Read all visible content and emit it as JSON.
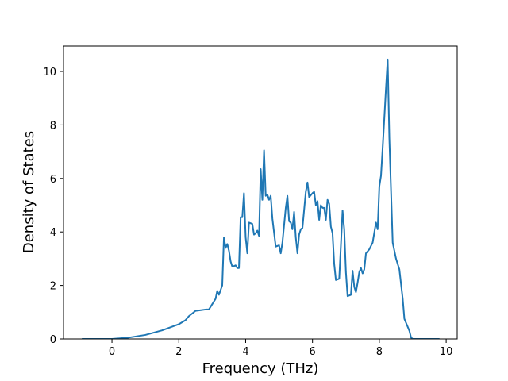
{
  "chart_data": {
    "type": "line",
    "xlabel": "Frequency (THz)",
    "ylabel": "Density of States",
    "x": [
      -0.9,
      0,
      0.5,
      1.0,
      1.5,
      2.0,
      2.2,
      2.3,
      2.5,
      2.8,
      2.9,
      3.0,
      3.1,
      3.15,
      3.2,
      3.3,
      3.35,
      3.4,
      3.45,
      3.5,
      3.55,
      3.6,
      3.7,
      3.75,
      3.8,
      3.85,
      3.9,
      3.95,
      4.0,
      4.05,
      4.1,
      4.2,
      4.25,
      4.3,
      4.35,
      4.4,
      4.45,
      4.5,
      4.55,
      4.6,
      4.65,
      4.7,
      4.75,
      4.8,
      4.9,
      5.0,
      5.05,
      5.1,
      5.2,
      5.25,
      5.3,
      5.35,
      5.4,
      5.45,
      5.5,
      5.55,
      5.6,
      5.65,
      5.7,
      5.8,
      5.85,
      5.9,
      6.0,
      6.05,
      6.1,
      6.15,
      6.2,
      6.25,
      6.3,
      6.35,
      6.4,
      6.45,
      6.5,
      6.55,
      6.6,
      6.65,
      6.7,
      6.8,
      6.85,
      6.9,
      6.95,
      7.0,
      7.05,
      7.15,
      7.2,
      7.25,
      7.3,
      7.35,
      7.4,
      7.45,
      7.5,
      7.55,
      7.6,
      7.7,
      7.8,
      7.9,
      7.95,
      8.0,
      8.05,
      8.1,
      8.2,
      8.25,
      8.3,
      8.4,
      8.5,
      8.6,
      8.7,
      8.75,
      8.8,
      8.9,
      8.95,
      9.0,
      9.8
    ],
    "y": [
      0,
      0,
      0.05,
      0.15,
      0.32,
      0.55,
      0.7,
      0.85,
      1.05,
      1.1,
      1.1,
      1.3,
      1.5,
      1.8,
      1.65,
      2.0,
      3.8,
      3.4,
      3.55,
      3.3,
      2.9,
      2.7,
      2.75,
      2.65,
      2.65,
      4.55,
      4.55,
      5.45,
      3.8,
      3.2,
      4.35,
      4.3,
      3.9,
      3.95,
      4.05,
      3.85,
      6.35,
      5.2,
      7.05,
      5.35,
      5.4,
      5.2,
      5.35,
      4.5,
      3.45,
      3.5,
      3.2,
      3.6,
      4.9,
      5.35,
      4.4,
      4.35,
      4.1,
      4.75,
      3.8,
      3.2,
      3.9,
      4.1,
      4.15,
      5.5,
      5.85,
      5.3,
      5.45,
      5.5,
      5.0,
      5.15,
      4.45,
      5.0,
      4.9,
      4.9,
      4.45,
      5.2,
      5.05,
      4.2,
      3.95,
      2.8,
      2.2,
      2.25,
      3.5,
      4.8,
      4.1,
      2.5,
      1.6,
      1.65,
      2.55,
      1.95,
      1.75,
      2.1,
      2.5,
      2.65,
      2.45,
      2.6,
      3.2,
      3.35,
      3.6,
      4.35,
      4.1,
      5.7,
      6.1,
      7.15,
      9.4,
      10.45,
      7.5,
      3.6,
      3.0,
      2.6,
      1.5,
      0.75,
      0.6,
      0.3,
      0.05,
      0,
      0
    ],
    "color": "#1f77b4",
    "xlim": [
      -1.45,
      10.33
    ],
    "ylim": [
      0,
      10.95
    ],
    "xticks": [
      0,
      2,
      4,
      6,
      8,
      10
    ],
    "yticks": [
      0,
      2,
      4,
      6,
      8,
      10
    ]
  }
}
